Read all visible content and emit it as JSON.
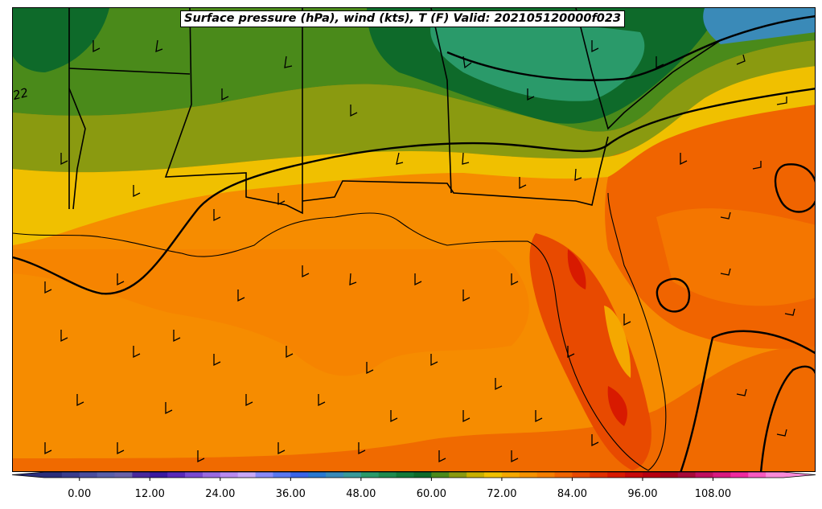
{
  "map": {
    "title": "Surface pressure (hPa), wind (kts), T (F) Valid: 202105120000f023",
    "isobar_label": "22",
    "colorbar": {
      "tick_labels": [
        "0.00",
        "12.00",
        "24.00",
        "36.00",
        "48.00",
        "60.00",
        "72.00",
        "84.00",
        "96.00",
        "108.00"
      ],
      "tick_values": [
        0,
        12,
        24,
        36,
        48,
        60,
        72,
        84,
        96,
        108
      ],
      "range": [
        -6,
        120
      ],
      "colors": [
        "#2b2e7a",
        "#3a3d8c",
        "#4a4d9c",
        "#5a5fa8",
        "#6a62a8",
        "#4a2a9c",
        "#3b1aa0",
        "#5a2ab8",
        "#7a4ad0",
        "#9a6ae0",
        "#b98af0",
        "#c9a8f8",
        "#8a8af8",
        "#5a78f0",
        "#3a64e8",
        "#2a78d0",
        "#3a8ab8",
        "#3a9a9a",
        "#2a9a6a",
        "#1f8a4f",
        "#137a3a",
        "#0e6a2a",
        "#4a8a1a",
        "#8a9a10",
        "#c8b000",
        "#f0c000",
        "#f5a800",
        "#f69200",
        "#f57e00",
        "#f06400",
        "#e84a00",
        "#e03000",
        "#d81a00",
        "#c80a0a",
        "#b80010",
        "#a8001c",
        "#a80a3a",
        "#c01060",
        "#d81a80",
        "#f02aa0",
        "#f85ac0",
        "#fa8ad8"
      ]
    }
  }
}
